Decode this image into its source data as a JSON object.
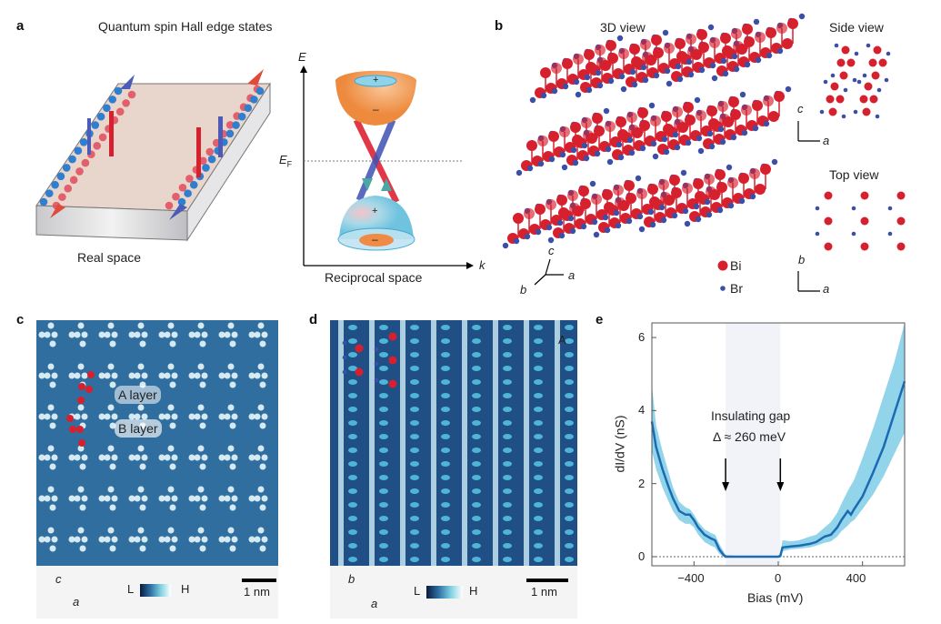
{
  "panel_a": {
    "label": "a",
    "title": "Quantum spin Hall edge states",
    "real_space": "Real space",
    "reciprocal_space": "Reciprocal space",
    "axis_E": "E",
    "axis_EF": "E",
    "axis_EF_sub": "F",
    "axis_k": "k",
    "plus": "+",
    "minus": "–"
  },
  "panel_b": {
    "label": "b",
    "view_3d": "3D view",
    "side_view": "Side view",
    "top_view": "Top view",
    "legend": [
      {
        "name": "Bi",
        "color": "#d7202e"
      },
      {
        "name": "Br",
        "color": "#3b4fa8"
      }
    ],
    "axes_3d": {
      "c": "c",
      "a": "a",
      "b": "b"
    },
    "axes_side": {
      "c": "c",
      "a": "a"
    },
    "axes_top": {
      "b": "b",
      "a": "a"
    }
  },
  "panel_c": {
    "label": "c",
    "a_layer": "A layer",
    "b_layer": "B layer",
    "axis_up": "c",
    "axis_right": "a",
    "cbar_low": "L",
    "cbar_high": "H",
    "scale": "1 nm"
  },
  "panel_d": {
    "label": "d",
    "corner": "A",
    "axis_up": "b",
    "axis_right": "a",
    "cbar_low": "L",
    "cbar_high": "H",
    "scale": "1 nm"
  },
  "panel_e": {
    "label": "e",
    "annotation_line1": "Insulating gap",
    "annotation_line2": "Δ ≈ 260 meV"
  },
  "colors": {
    "bi": "#d7202e",
    "br": "#3b4fa8",
    "mean_curve": "#1a6bb3",
    "band": "#7fcde6",
    "stm_bg": "#2f6e9e"
  },
  "chart_data": {
    "type": "line",
    "xlabel": "Bias (mV)",
    "ylabel": "dI/dV (nS)",
    "xlim": [
      -600,
      600
    ],
    "ylim": [
      -0.25,
      6.4
    ],
    "xticks": [
      -400,
      0,
      400
    ],
    "xtick_labels": [
      "−400",
      "0",
      "400"
    ],
    "yticks": [
      0,
      2,
      4,
      6
    ],
    "ytick_labels": [
      "0",
      "2",
      "4",
      "6"
    ],
    "gap_region": [
      -250,
      10
    ],
    "arrows_at": [
      -250,
      10
    ],
    "zero_line": 0,
    "mean": {
      "x": [
        -600,
        -580,
        -550,
        -520,
        -500,
        -470,
        -440,
        -420,
        -400,
        -380,
        -350,
        -320,
        -300,
        -280,
        -260,
        -250,
        -200,
        -100,
        0,
        10,
        20,
        60,
        100,
        150,
        180,
        220,
        250,
        280,
        300,
        330,
        345,
        360,
        400,
        450,
        500,
        550,
        600
      ],
      "y": [
        3.7,
        3.0,
        2.4,
        1.9,
        1.6,
        1.25,
        1.15,
        1.15,
        1.0,
        0.8,
        0.6,
        0.5,
        0.45,
        0.2,
        0.05,
        0.0,
        0.0,
        0.0,
        0.0,
        0.02,
        0.25,
        0.28,
        0.3,
        0.35,
        0.4,
        0.55,
        0.6,
        0.8,
        1.0,
        1.25,
        1.15,
        1.3,
        1.65,
        2.3,
        3.0,
        3.9,
        4.8
      ]
    },
    "band_upper": [
      4.7,
      3.6,
      2.9,
      2.3,
      1.9,
      1.5,
      1.35,
      1.3,
      1.15,
      0.95,
      0.75,
      0.65,
      0.6,
      0.35,
      0.15,
      0.05,
      0.02,
      0.02,
      0.02,
      0.1,
      0.45,
      0.42,
      0.45,
      0.55,
      0.6,
      0.8,
      0.95,
      1.2,
      1.45,
      1.8,
      1.95,
      2.1,
      2.7,
      3.5,
      4.4,
      5.3,
      6.4
    ],
    "band_lower": [
      2.9,
      2.4,
      1.9,
      1.5,
      1.25,
      1.0,
      0.9,
      0.9,
      0.8,
      0.6,
      0.4,
      0.3,
      0.25,
      0.08,
      0.0,
      -0.02,
      -0.02,
      -0.02,
      -0.02,
      -0.02,
      0.15,
      0.2,
      0.22,
      0.25,
      0.3,
      0.38,
      0.42,
      0.55,
      0.7,
      0.85,
      0.95,
      1.0,
      1.3,
      1.7,
      2.2,
      2.8,
      3.4
    ]
  }
}
